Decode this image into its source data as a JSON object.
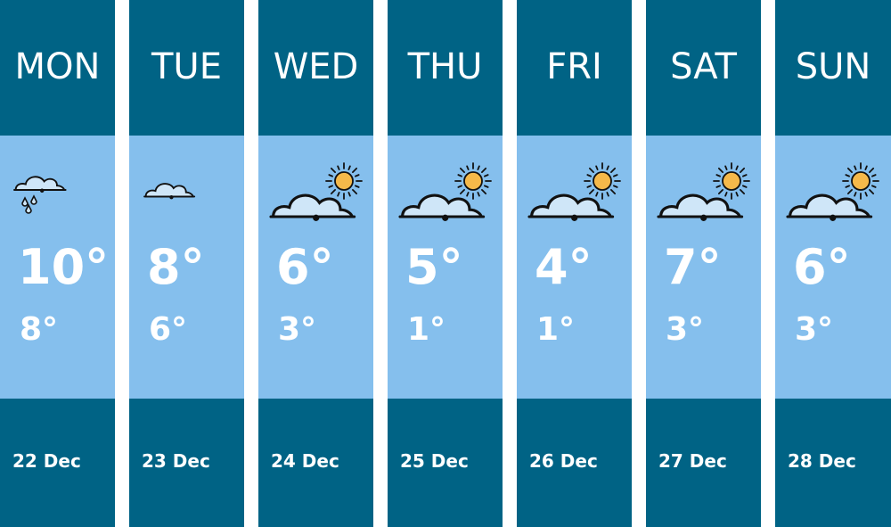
{
  "colors": {
    "header": "#006385",
    "body": "#85bfed",
    "sun": "#f5b94a",
    "cloud": "#cfe6f8"
  },
  "days": [
    {
      "day": "MON",
      "icon": "rain-cloud-icon",
      "high": "10°",
      "low": "8°",
      "date": "22 Dec"
    },
    {
      "day": "TUE",
      "icon": "cloud-icon",
      "high": "8°",
      "low": "6°",
      "date": "23 Dec"
    },
    {
      "day": "WED",
      "icon": "partly-sunny-icon",
      "high": "6°",
      "low": "3°",
      "date": "24 Dec"
    },
    {
      "day": "THU",
      "icon": "partly-sunny-icon",
      "high": "5°",
      "low": "1°",
      "date": "25 Dec"
    },
    {
      "day": "FRI",
      "icon": "partly-sunny-icon",
      "high": "4°",
      "low": "1°",
      "date": "26 Dec"
    },
    {
      "day": "SAT",
      "icon": "partly-sunny-icon",
      "high": "7°",
      "low": "3°",
      "date": "27 Dec"
    },
    {
      "day": "SUN",
      "icon": "partly-sunny-icon",
      "high": "6°",
      "low": "3°",
      "date": "28 Dec"
    }
  ]
}
